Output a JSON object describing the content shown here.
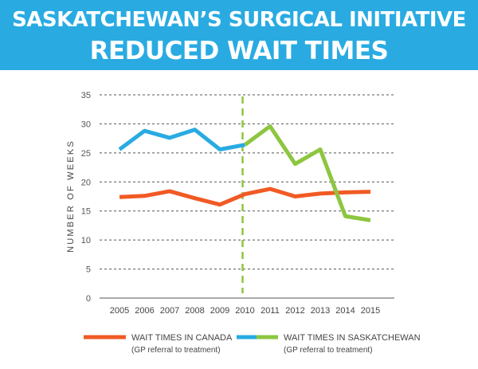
{
  "header": {
    "title_line1": "SASKATCHEWAN’S SURGICAL INITIATIVE",
    "title_line2": "REDUCED WAIT TIMES",
    "background_color": "#29abe2"
  },
  "chart_data": {
    "type": "line",
    "title": "SASKATCHEWAN’S SURGICAL INITIATIVE REDUCED WAIT TIMES",
    "xlabel": "",
    "ylabel": "NUMBER OF WEEKS",
    "x": [
      "2005",
      "2006",
      "2007",
      "2008",
      "2009",
      "2010",
      "2011",
      "2012",
      "2013",
      "2014",
      "2015"
    ],
    "ylim": [
      0,
      35
    ],
    "yticks": [
      "0",
      "5",
      "10",
      "15",
      "20",
      "25",
      "30",
      "35"
    ],
    "grid": "horizontal dashed",
    "marker_year": "2010",
    "series": [
      {
        "name": "WAIT TIMES IN CANADA",
        "note": "(GP referral to treatment)",
        "color": "#f15a24",
        "values": [
          17.4,
          17.6,
          18.4,
          17.2,
          16.1,
          17.9,
          18.8,
          17.5,
          18.0,
          18.2,
          18.3
        ]
      },
      {
        "name": "WAIT TIMES IN SASKATCHEWAN",
        "note": "(GP referral to treatment)",
        "color_before": "#29abe2",
        "color_after": "#8dc63f",
        "values": [
          25.6,
          28.8,
          27.6,
          29.0,
          25.6,
          26.4,
          29.6,
          23.1,
          25.6,
          14.1,
          13.4
        ]
      }
    ],
    "legend_position": "bottom"
  }
}
